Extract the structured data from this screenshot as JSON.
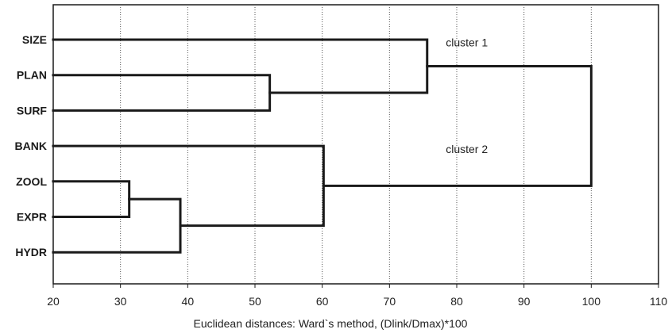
{
  "chart_data": {
    "type": "dendrogram",
    "title": "",
    "xlabel": "Euclidean distances: Ward`s method, (Dlink/Dmax)*100",
    "ylabel": "",
    "xlim": [
      20,
      110
    ],
    "x_ticks": [
      "20",
      "30",
      "40",
      "50",
      "60",
      "70",
      "80",
      "90",
      "100",
      "110"
    ],
    "grid": "vertical dotted",
    "leaves": [
      "SIZE",
      "PLAN",
      "SURF",
      "BANK",
      "ZOOL",
      "EXPR",
      "HYDR"
    ],
    "merges": [
      {
        "left": "ZOOL",
        "right": "EXPR",
        "distance": 31.3
      },
      {
        "left": "ZOOL+EXPR",
        "right": "HYDR",
        "distance": 38.9
      },
      {
        "left": "PLAN",
        "right": "SURF",
        "distance": 52.2
      },
      {
        "left": "BANK",
        "right": "ZOOL+EXPR+HYDR",
        "distance": 60.2
      },
      {
        "left": "SIZE",
        "right": "PLAN+SURF",
        "distance": 75.6
      },
      {
        "left": "SIZE+PLAN+SURF",
        "right": "BANK+ZOOL+EXPR+HYDR",
        "distance": 100
      }
    ],
    "annotations": [
      {
        "text": "cluster 1",
        "x": 81.5,
        "near_leaf": "PLAN"
      },
      {
        "text": "cluster 2",
        "x": 81.5,
        "near_leaf": "ZOOL"
      }
    ]
  }
}
